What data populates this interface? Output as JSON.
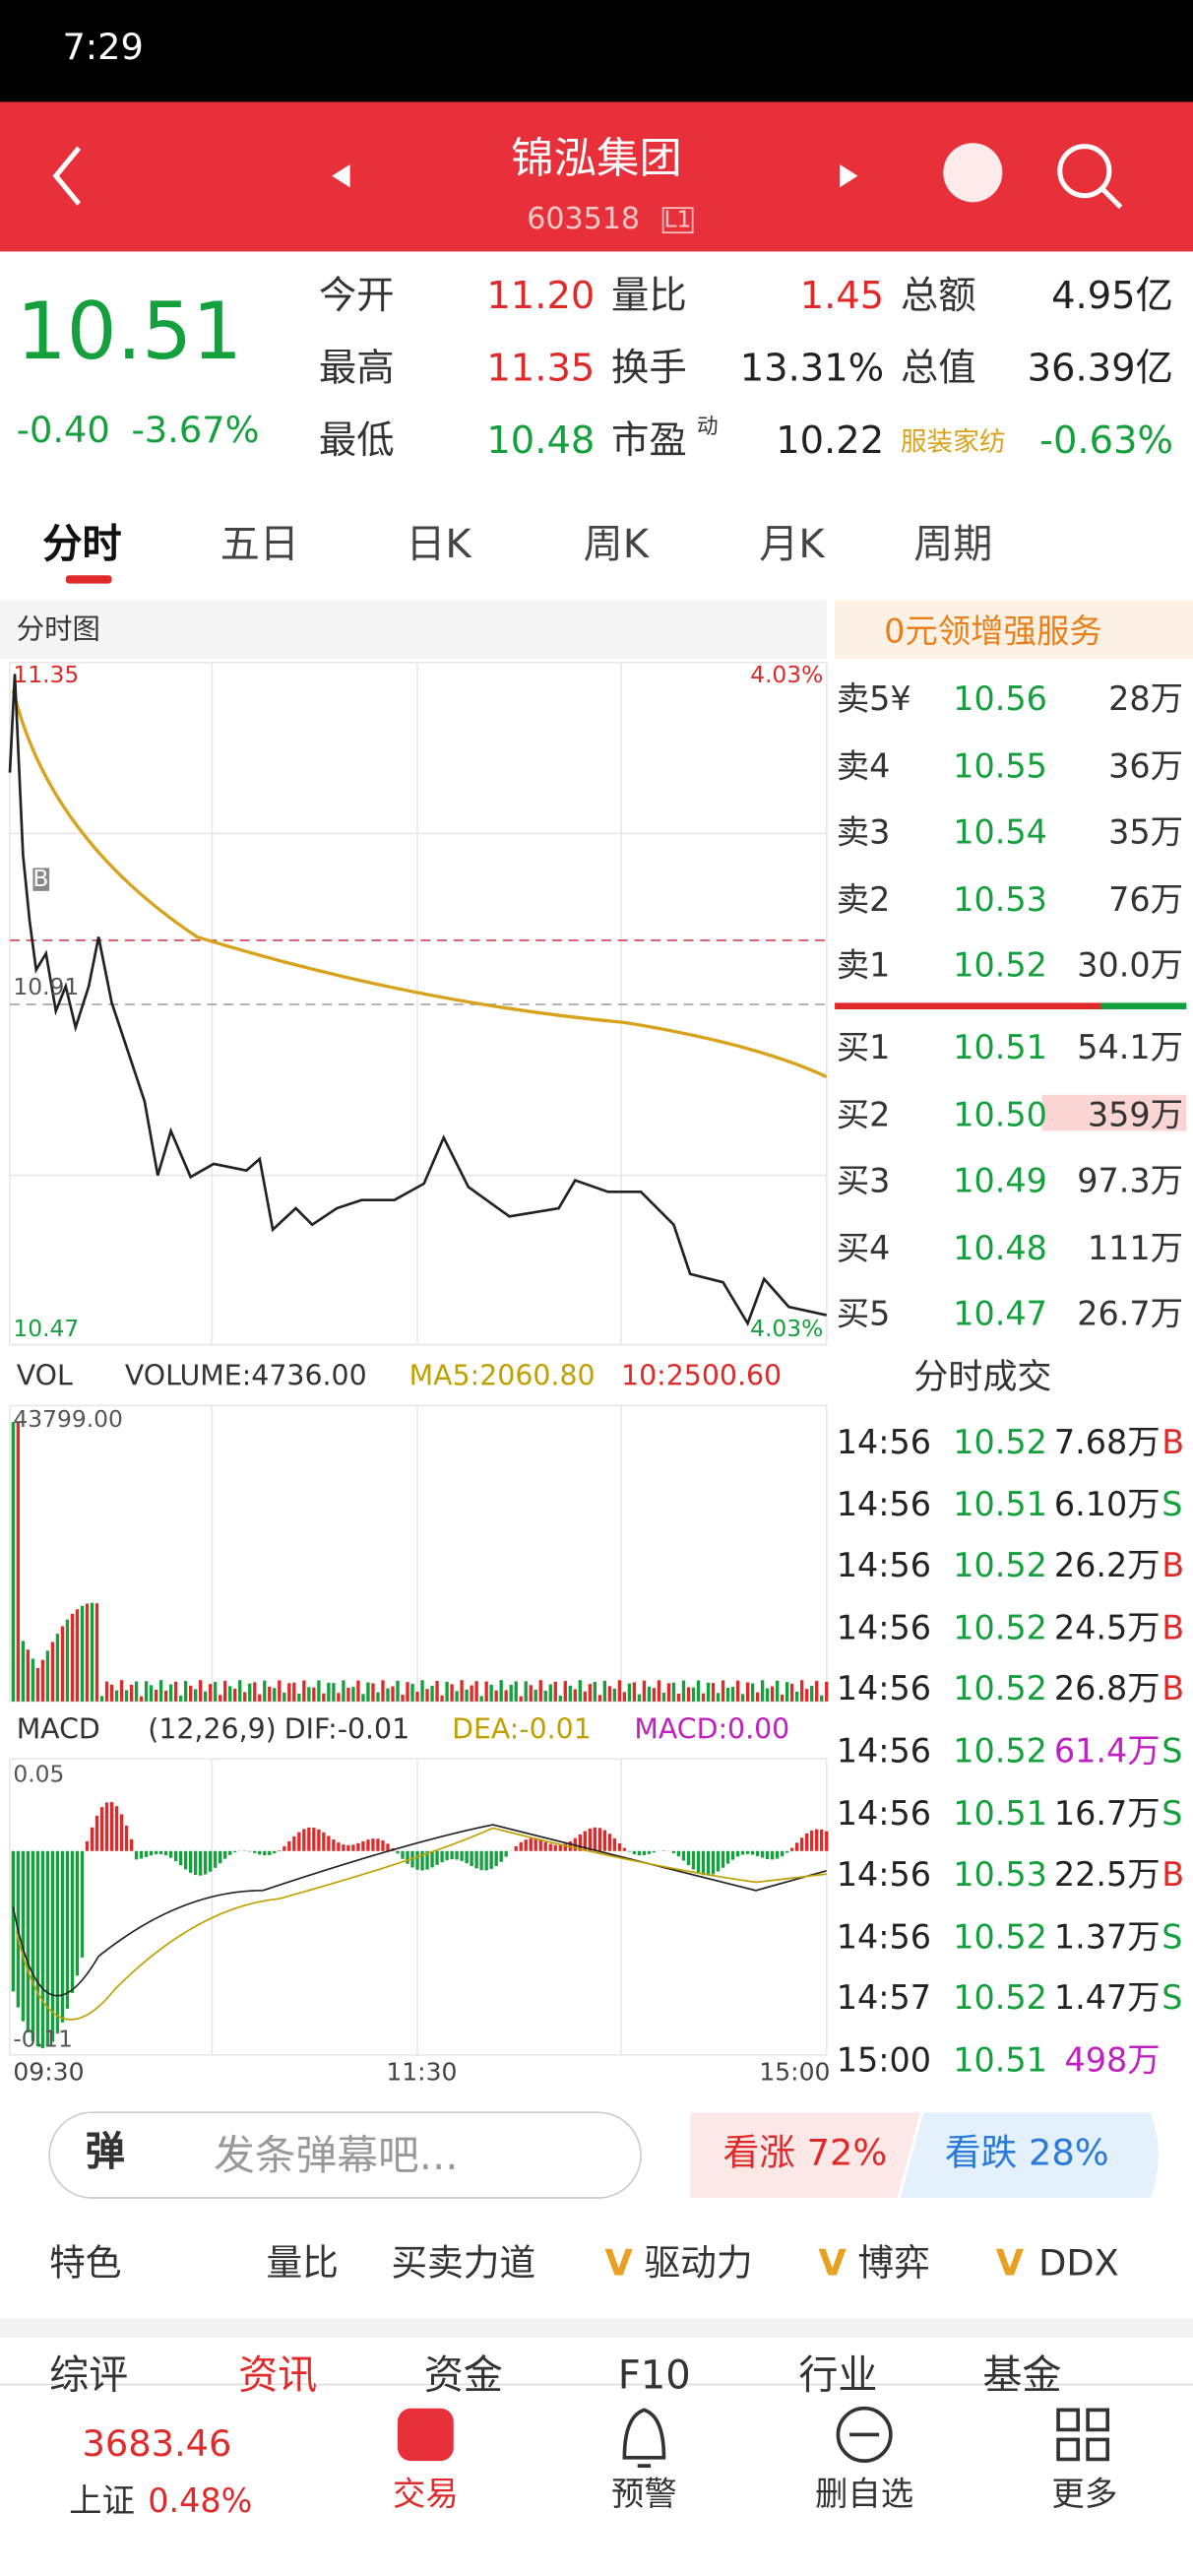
{
  "status": {
    "time": "7:29"
  },
  "header": {
    "name": "锦泓集团",
    "code": "603518",
    "badge": "L1"
  },
  "quote": {
    "price": "10.51",
    "change": "-0.40",
    "pct": "-3.67%",
    "stats": [
      [
        [
          "今开",
          "11.20"
        ],
        [
          "量比",
          "1.45"
        ],
        [
          "总额",
          "4.95亿"
        ]
      ],
      [
        [
          "最高",
          "11.35"
        ],
        [
          "换手",
          "13.31%"
        ],
        [
          "总值",
          "36.39亿"
        ]
      ],
      [
        [
          "最低",
          "10.48"
        ],
        [
          "市盈",
          "10.22"
        ],
        [
          "服装家纺",
          "-0.63%"
        ]
      ]
    ],
    "pe_mark": "动"
  },
  "tabs": [
    "分时",
    "五日",
    "日K",
    "周K",
    "月K",
    "周期"
  ],
  "chart": {
    "title": "分时图",
    "high": "11.35",
    "high_pct": "4.03%",
    "mid": "10.91",
    "low": "10.47",
    "low_pct": "4.03%",
    "marker": "B",
    "vol": [
      "VOL",
      "VOLUME:4736.00",
      "MA5:2060.80",
      "10:2500.60"
    ],
    "vol_max": "43799.00",
    "macd": [
      "MACD",
      "(12,26,9)",
      "DIF:-0.01",
      "DEA:-0.01",
      "MACD:0.00"
    ],
    "macd_max": "0.05",
    "macd_min": "-0.11",
    "times": [
      "09:30",
      "11:30",
      "15:00"
    ]
  },
  "promo": "0元领增强服务",
  "book": {
    "sell": [
      [
        "卖5¥",
        "10.56",
        "28万"
      ],
      [
        "卖4",
        "10.55",
        "36万"
      ],
      [
        "卖3",
        "10.54",
        "35万"
      ],
      [
        "卖2",
        "10.53",
        "76万"
      ],
      [
        "卖1",
        "10.52",
        "30.0万"
      ]
    ],
    "buy": [
      [
        "买1",
        "10.51",
        "54.1万"
      ],
      [
        "买2",
        "10.50",
        "359万"
      ],
      [
        "买3",
        "10.49",
        "97.3万"
      ],
      [
        "买4",
        "10.48",
        "111万"
      ],
      [
        "买5",
        "10.47",
        "26.7万"
      ]
    ]
  },
  "trades": {
    "title": "分时成交",
    "rows": [
      [
        "14:56",
        "10.52",
        "7.68万",
        "B"
      ],
      [
        "14:56",
        "10.51",
        "6.10万",
        "S"
      ],
      [
        "14:56",
        "10.52",
        "26.2万",
        "B"
      ],
      [
        "14:56",
        "10.52",
        "24.5万",
        "B"
      ],
      [
        "14:56",
        "10.52",
        "26.8万",
        "B"
      ],
      [
        "14:56",
        "10.52",
        "61.4万",
        "S"
      ],
      [
        "14:56",
        "10.51",
        "16.7万",
        "S"
      ],
      [
        "14:56",
        "10.53",
        "22.5万",
        "B"
      ],
      [
        "14:56",
        "10.52",
        "1.37万",
        "S"
      ],
      [
        "14:57",
        "10.52",
        "1.47万",
        "S"
      ],
      [
        "15:00",
        "10.51",
        "498万",
        ""
      ]
    ]
  },
  "danmu": {
    "icon": "弹",
    "placeholder": "发条弹幕吧...",
    "up": "看涨 72%",
    "down": "看跌 28%"
  },
  "features": [
    "特色",
    "量比",
    "买卖力道",
    "驱动力",
    "博弈",
    "DDX"
  ],
  "subtabs": [
    "综评",
    "资讯",
    "资金",
    "F10",
    "行业",
    "基金"
  ],
  "nav": {
    "index_value": "3683.46",
    "index_name": "上证",
    "index_pct": "0.48%",
    "items": [
      "交易",
      "预警",
      "删自选",
      "更多"
    ]
  }
}
